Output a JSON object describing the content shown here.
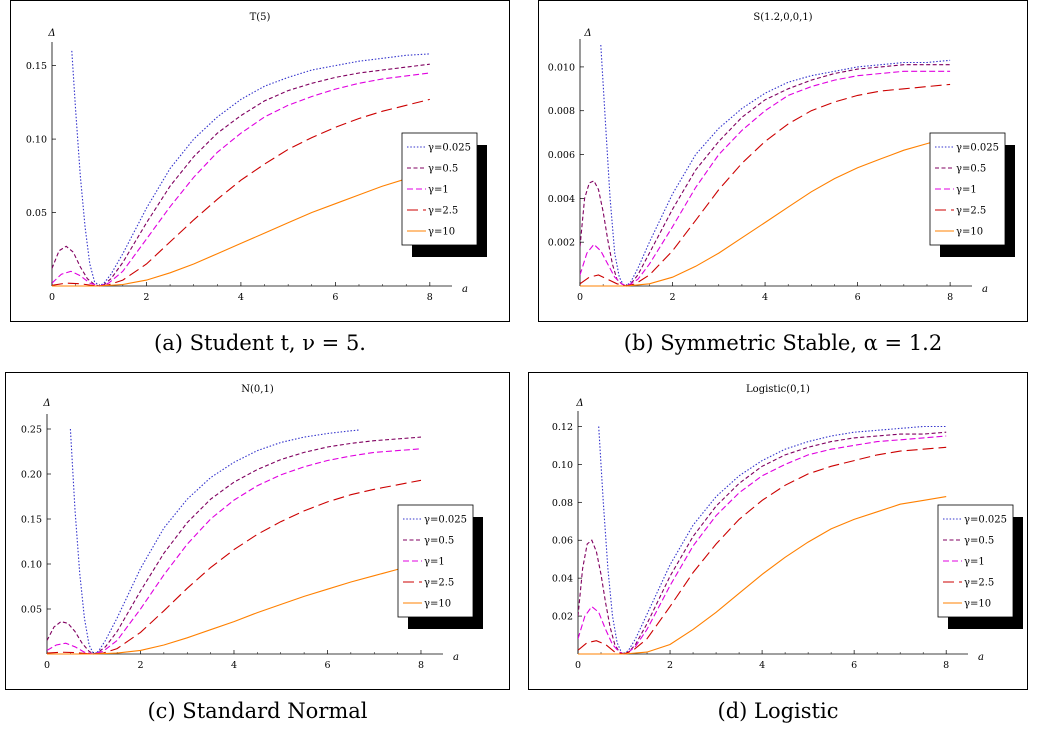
{
  "legend_items": [
    "γ=0.025",
    "γ=0.5",
    "γ=1",
    "γ=2.5",
    "γ=10"
  ],
  "series_styles": [
    {
      "color": "#3333cc",
      "dash": "1.5,1.8"
    },
    {
      "color": "#800060",
      "dash": "4,2.5"
    },
    {
      "color": "#e000e0",
      "dash": "6,3"
    },
    {
      "color": "#cc0000",
      "dash": "11,5"
    },
    {
      "color": "#ff8000",
      "dash": ""
    }
  ],
  "chart_data": [
    {
      "type": "line",
      "title": "T(5)",
      "xlabel": "a",
      "ylabel": "Δ",
      "xlim": [
        0,
        8.3
      ],
      "ylim": [
        0,
        0.162
      ],
      "x_ticks": [
        0,
        2,
        4,
        6,
        8
      ],
      "y_ticks": [
        0.05,
        0.1,
        0.15
      ],
      "y_tick_labels": [
        "0.05",
        "0.10",
        "0.15"
      ],
      "caption": "(a) Student t, ν = 5.",
      "series": [
        {
          "name": "γ=0.025",
          "x": [
            0.42,
            0.5,
            0.6,
            0.7,
            0.8,
            0.9,
            1.0,
            1.1,
            1.25,
            1.5,
            2,
            2.5,
            3,
            3.5,
            4,
            4.5,
            5,
            5.5,
            6,
            6.5,
            7,
            7.5,
            8
          ],
          "y": [
            0.16,
            0.12,
            0.075,
            0.04,
            0.015,
            0.003,
            0.0,
            0.002,
            0.008,
            0.022,
            0.053,
            0.08,
            0.1,
            0.115,
            0.127,
            0.136,
            0.142,
            0.147,
            0.15,
            0.153,
            0.155,
            0.157,
            0.158
          ]
        },
        {
          "name": "γ=0.5",
          "x": [
            0,
            0.15,
            0.3,
            0.45,
            0.6,
            0.75,
            0.9,
            1.0,
            1.1,
            1.25,
            1.5,
            2,
            2.5,
            3,
            3.5,
            4,
            4.5,
            5,
            5.5,
            6,
            6.5,
            7,
            7.5,
            8
          ],
          "y": [
            0.012,
            0.024,
            0.027,
            0.023,
            0.013,
            0.005,
            0.001,
            0.0,
            0.001,
            0.005,
            0.016,
            0.043,
            0.068,
            0.088,
            0.104,
            0.116,
            0.126,
            0.133,
            0.138,
            0.142,
            0.145,
            0.147,
            0.149,
            0.151
          ]
        },
        {
          "name": "γ=1",
          "x": [
            0,
            0.2,
            0.4,
            0.6,
            0.8,
            1.0,
            1.2,
            1.5,
            2,
            2.5,
            3,
            3.5,
            4,
            4.5,
            5,
            5.5,
            6,
            6.5,
            7,
            7.5,
            8
          ],
          "y": [
            0.002,
            0.008,
            0.01,
            0.007,
            0.002,
            0.0,
            0.002,
            0.01,
            0.032,
            0.054,
            0.074,
            0.091,
            0.104,
            0.115,
            0.123,
            0.129,
            0.134,
            0.138,
            0.141,
            0.143,
            0.145
          ]
        },
        {
          "name": "γ=2.5",
          "x": [
            0,
            0.3,
            0.6,
            0.9,
            1.0,
            1.2,
            1.5,
            2,
            2.5,
            3,
            3.5,
            4,
            4.5,
            5,
            5.5,
            6,
            6.5,
            7,
            7.5,
            8
          ],
          "y": [
            0.0005,
            0.002,
            0.0015,
            0.0002,
            0.0,
            0.0008,
            0.004,
            0.015,
            0.03,
            0.045,
            0.059,
            0.072,
            0.083,
            0.093,
            0.101,
            0.108,
            0.114,
            0.119,
            0.123,
            0.127
          ]
        },
        {
          "name": "γ=10",
          "x": [
            0,
            0.5,
            1.0,
            1.5,
            2,
            2.5,
            3,
            3.5,
            4,
            4.5,
            5,
            5.5,
            6,
            6.5,
            7,
            7.5,
            8
          ],
          "y": [
            0.0,
            0.0,
            0.0,
            0.001,
            0.004,
            0.009,
            0.015,
            0.022,
            0.029,
            0.036,
            0.043,
            0.05,
            0.056,
            0.062,
            0.068,
            0.073,
            0.078
          ]
        }
      ]
    },
    {
      "type": "line",
      "title": "S(1.2,0,0,1)",
      "xlabel": "a",
      "ylabel": "Δ",
      "xlim": [
        0,
        8.3
      ],
      "ylim": [
        0,
        0.011
      ],
      "x_ticks": [
        0,
        2,
        4,
        6,
        8
      ],
      "y_ticks": [
        0.002,
        0.004,
        0.006,
        0.008,
        0.01
      ],
      "y_tick_labels": [
        "0.002",
        "0.004",
        "0.006",
        "0.008",
        "0.010"
      ],
      "caption": "(b) Symmetric Stable, α = 1.2",
      "series": [
        {
          "name": "γ=0.025",
          "x": [
            0.45,
            0.55,
            0.65,
            0.75,
            0.85,
            0.95,
            1.0,
            1.1,
            1.25,
            1.5,
            2,
            2.5,
            3,
            3.5,
            4,
            4.5,
            5,
            5.5,
            6,
            6.5,
            7,
            7.5,
            8
          ],
          "y": [
            0.011,
            0.0075,
            0.004,
            0.0015,
            0.0004,
            0.0,
            0.0,
            0.0002,
            0.0008,
            0.002,
            0.0042,
            0.006,
            0.0072,
            0.0081,
            0.0088,
            0.0093,
            0.0096,
            0.0098,
            0.01,
            0.0101,
            0.0102,
            0.0102,
            0.0103
          ]
        },
        {
          "name": "γ=0.5",
          "x": [
            0,
            0.1,
            0.2,
            0.3,
            0.4,
            0.5,
            0.6,
            0.7,
            0.8,
            0.9,
            1.0,
            1.1,
            1.25,
            1.5,
            2,
            2.5,
            3,
            3.5,
            4,
            4.5,
            5,
            5.5,
            6,
            6.5,
            7,
            7.5,
            8
          ],
          "y": [
            0.0018,
            0.004,
            0.0047,
            0.0048,
            0.0044,
            0.0034,
            0.0021,
            0.001,
            0.0003,
            0.0001,
            0.0,
            0.0001,
            0.0005,
            0.0015,
            0.0035,
            0.0053,
            0.0066,
            0.0077,
            0.0085,
            0.009,
            0.0094,
            0.0097,
            0.0099,
            0.01,
            0.0101,
            0.0101,
            0.0101
          ]
        },
        {
          "name": "γ=1",
          "x": [
            0,
            0.15,
            0.3,
            0.45,
            0.6,
            0.75,
            0.9,
            1.0,
            1.1,
            1.25,
            1.5,
            2,
            2.5,
            3,
            3.5,
            4,
            4.5,
            5,
            5.5,
            6,
            6.5,
            7,
            7.5,
            8
          ],
          "y": [
            0.0005,
            0.0015,
            0.0019,
            0.0016,
            0.001,
            0.0004,
            0.0001,
            0.0,
            0.0001,
            0.0003,
            0.001,
            0.0027,
            0.0045,
            0.006,
            0.0071,
            0.008,
            0.0087,
            0.0091,
            0.0094,
            0.0096,
            0.0097,
            0.0098,
            0.0098,
            0.0098
          ]
        },
        {
          "name": "γ=2.5",
          "x": [
            0,
            0.2,
            0.4,
            0.6,
            0.8,
            1.0,
            1.2,
            1.5,
            2,
            2.5,
            3,
            3.5,
            4,
            4.5,
            5,
            5.5,
            6,
            6.5,
            7,
            7.5,
            8
          ],
          "y": [
            0.0001,
            0.0004,
            0.0005,
            0.0003,
            0.0001,
            0.0,
            0.0001,
            0.0005,
            0.0016,
            0.003,
            0.0044,
            0.0056,
            0.0066,
            0.0074,
            0.008,
            0.0084,
            0.0087,
            0.0089,
            0.009,
            0.0091,
            0.0092
          ]
        },
        {
          "name": "γ=10",
          "x": [
            0,
            0.5,
            1.0,
            1.5,
            2,
            2.5,
            3,
            3.5,
            4,
            4.5,
            5,
            5.5,
            6,
            6.5,
            7,
            7.5,
            8
          ],
          "y": [
            0.0,
            0.0,
            0.0,
            0.0001,
            0.0004,
            0.0009,
            0.0015,
            0.0022,
            0.0029,
            0.0036,
            0.0043,
            0.0049,
            0.0054,
            0.0058,
            0.0062,
            0.0065,
            0.0068
          ]
        }
      ]
    },
    {
      "type": "line",
      "title": "N(0,1)",
      "xlabel": "a",
      "ylabel": "Δ",
      "xlim": [
        0,
        8.3
      ],
      "ylim": [
        0,
        0.26
      ],
      "x_ticks": [
        0,
        2,
        4,
        6,
        8
      ],
      "y_ticks": [
        0.05,
        0.1,
        0.15,
        0.2,
        0.25
      ],
      "y_tick_labels": [
        "0.05",
        "0.10",
        "0.15",
        "0.20",
        "0.25"
      ],
      "caption": "(c) Standard Normal",
      "series": [
        {
          "name": "γ=0.025",
          "x": [
            0.5,
            0.6,
            0.7,
            0.8,
            0.9,
            1.0,
            1.1,
            1.25,
            1.5,
            2,
            2.5,
            3,
            3.5,
            4,
            4.5,
            5,
            5.5,
            6,
            6.5,
            6.7
          ],
          "y": [
            0.25,
            0.16,
            0.09,
            0.04,
            0.01,
            0.0,
            0.003,
            0.015,
            0.04,
            0.095,
            0.14,
            0.172,
            0.196,
            0.213,
            0.226,
            0.235,
            0.241,
            0.245,
            0.248,
            0.249
          ]
        },
        {
          "name": "γ=0.5",
          "x": [
            0,
            0.15,
            0.3,
            0.45,
            0.6,
            0.75,
            0.9,
            1.0,
            1.1,
            1.25,
            1.5,
            2,
            2.5,
            3,
            3.5,
            4,
            4.5,
            5,
            5.5,
            6,
            6.5,
            7,
            7.5,
            8
          ],
          "y": [
            0.015,
            0.03,
            0.036,
            0.034,
            0.025,
            0.012,
            0.003,
            0.0,
            0.002,
            0.008,
            0.025,
            0.07,
            0.112,
            0.146,
            0.172,
            0.191,
            0.205,
            0.216,
            0.224,
            0.23,
            0.234,
            0.237,
            0.239,
            0.241
          ]
        },
        {
          "name": "γ=1",
          "x": [
            0,
            0.2,
            0.4,
            0.6,
            0.8,
            1.0,
            1.2,
            1.5,
            2,
            2.5,
            3,
            3.5,
            4,
            4.5,
            5,
            5.5,
            6,
            6.5,
            7,
            7.5,
            8
          ],
          "y": [
            0.004,
            0.01,
            0.012,
            0.008,
            0.002,
            0.0,
            0.003,
            0.015,
            0.05,
            0.088,
            0.122,
            0.15,
            0.171,
            0.187,
            0.199,
            0.208,
            0.215,
            0.22,
            0.224,
            0.226,
            0.228
          ]
        },
        {
          "name": "γ=2.5",
          "x": [
            0,
            0.3,
            0.6,
            0.9,
            1.0,
            1.2,
            1.5,
            2,
            2.5,
            3,
            3.5,
            4,
            4.5,
            5,
            5.5,
            6,
            6.5,
            7,
            7.5,
            8
          ],
          "y": [
            0.001,
            0.002,
            0.0015,
            0.0002,
            0.0,
            0.001,
            0.006,
            0.024,
            0.048,
            0.073,
            0.096,
            0.116,
            0.133,
            0.147,
            0.159,
            0.169,
            0.177,
            0.183,
            0.188,
            0.193
          ]
        },
        {
          "name": "γ=10",
          "x": [
            0,
            0.5,
            1.0,
            1.5,
            2,
            2.5,
            3,
            3.5,
            4,
            4.5,
            5,
            5.5,
            6,
            6.5,
            7,
            7.5,
            8
          ],
          "y": [
            0.0,
            0.0,
            0.0,
            0.001,
            0.004,
            0.01,
            0.018,
            0.027,
            0.036,
            0.046,
            0.055,
            0.064,
            0.072,
            0.08,
            0.087,
            0.094,
            0.1
          ]
        }
      ]
    },
    {
      "type": "line",
      "title": "Logistic(0,1)",
      "xlabel": "a",
      "ylabel": "Δ",
      "xlim": [
        0,
        8.3
      ],
      "ylim": [
        0,
        0.125
      ],
      "x_ticks": [
        0,
        2,
        4,
        6,
        8
      ],
      "y_ticks": [
        0.02,
        0.04,
        0.06,
        0.08,
        0.1,
        0.12
      ],
      "y_tick_labels": [
        "0.02",
        "0.04",
        "0.06",
        "0.08",
        "0.10",
        "0.12"
      ],
      "caption": "(d) Logistic",
      "series": [
        {
          "name": "γ=0.025",
          "x": [
            0.45,
            0.55,
            0.65,
            0.75,
            0.85,
            0.95,
            1.0,
            1.1,
            1.25,
            1.5,
            2,
            2.5,
            3,
            3.5,
            4,
            4.5,
            5,
            5.5,
            6,
            6.5,
            7,
            7.5,
            8
          ],
          "y": [
            0.12,
            0.08,
            0.045,
            0.02,
            0.006,
            0.0005,
            0.0,
            0.002,
            0.008,
            0.021,
            0.047,
            0.068,
            0.083,
            0.094,
            0.102,
            0.108,
            0.112,
            0.115,
            0.117,
            0.118,
            0.119,
            0.12,
            0.12
          ]
        },
        {
          "name": "γ=0.5",
          "x": [
            0,
            0.1,
            0.2,
            0.3,
            0.4,
            0.5,
            0.6,
            0.7,
            0.8,
            0.9,
            1.0,
            1.1,
            1.25,
            1.5,
            2,
            2.5,
            3,
            3.5,
            4,
            4.5,
            5,
            5.5,
            6,
            6.5,
            7,
            7.5,
            8
          ],
          "y": [
            0.02,
            0.045,
            0.058,
            0.06,
            0.054,
            0.042,
            0.027,
            0.014,
            0.005,
            0.001,
            0.0,
            0.001,
            0.005,
            0.016,
            0.041,
            0.062,
            0.078,
            0.09,
            0.099,
            0.105,
            0.109,
            0.112,
            0.114,
            0.115,
            0.116,
            0.116,
            0.117
          ]
        },
        {
          "name": "γ=1",
          "x": [
            0,
            0.15,
            0.3,
            0.45,
            0.6,
            0.75,
            0.9,
            1.0,
            1.1,
            1.25,
            1.5,
            2,
            2.5,
            3,
            3.5,
            4,
            4.5,
            5,
            5.5,
            6,
            6.5,
            7,
            7.5,
            8
          ],
          "y": [
            0.008,
            0.02,
            0.025,
            0.022,
            0.013,
            0.005,
            0.001,
            0.0,
            0.001,
            0.004,
            0.013,
            0.036,
            0.057,
            0.073,
            0.085,
            0.094,
            0.1,
            0.105,
            0.108,
            0.11,
            0.112,
            0.113,
            0.114,
            0.115
          ]
        },
        {
          "name": "γ=2.5",
          "x": [
            0,
            0.2,
            0.4,
            0.6,
            0.8,
            1.0,
            1.2,
            1.5,
            2,
            2.5,
            3,
            3.5,
            4,
            4.5,
            5,
            5.5,
            6,
            6.5,
            7,
            7.5,
            8
          ],
          "y": [
            0.002,
            0.006,
            0.007,
            0.005,
            0.001,
            0.0,
            0.002,
            0.008,
            0.025,
            0.043,
            0.058,
            0.071,
            0.081,
            0.089,
            0.095,
            0.099,
            0.102,
            0.105,
            0.107,
            0.108,
            0.109
          ]
        },
        {
          "name": "γ=10",
          "x": [
            0,
            0.5,
            1.0,
            1.5,
            2,
            2.5,
            3,
            3.5,
            4,
            4.5,
            5,
            5.5,
            6,
            6.5,
            7,
            7.5,
            8
          ],
          "y": [
            0.0,
            0.0,
            0.0,
            0.001,
            0.005,
            0.013,
            0.022,
            0.032,
            0.042,
            0.051,
            0.059,
            0.066,
            0.071,
            0.075,
            0.079,
            0.081,
            0.083
          ]
        }
      ]
    }
  ]
}
